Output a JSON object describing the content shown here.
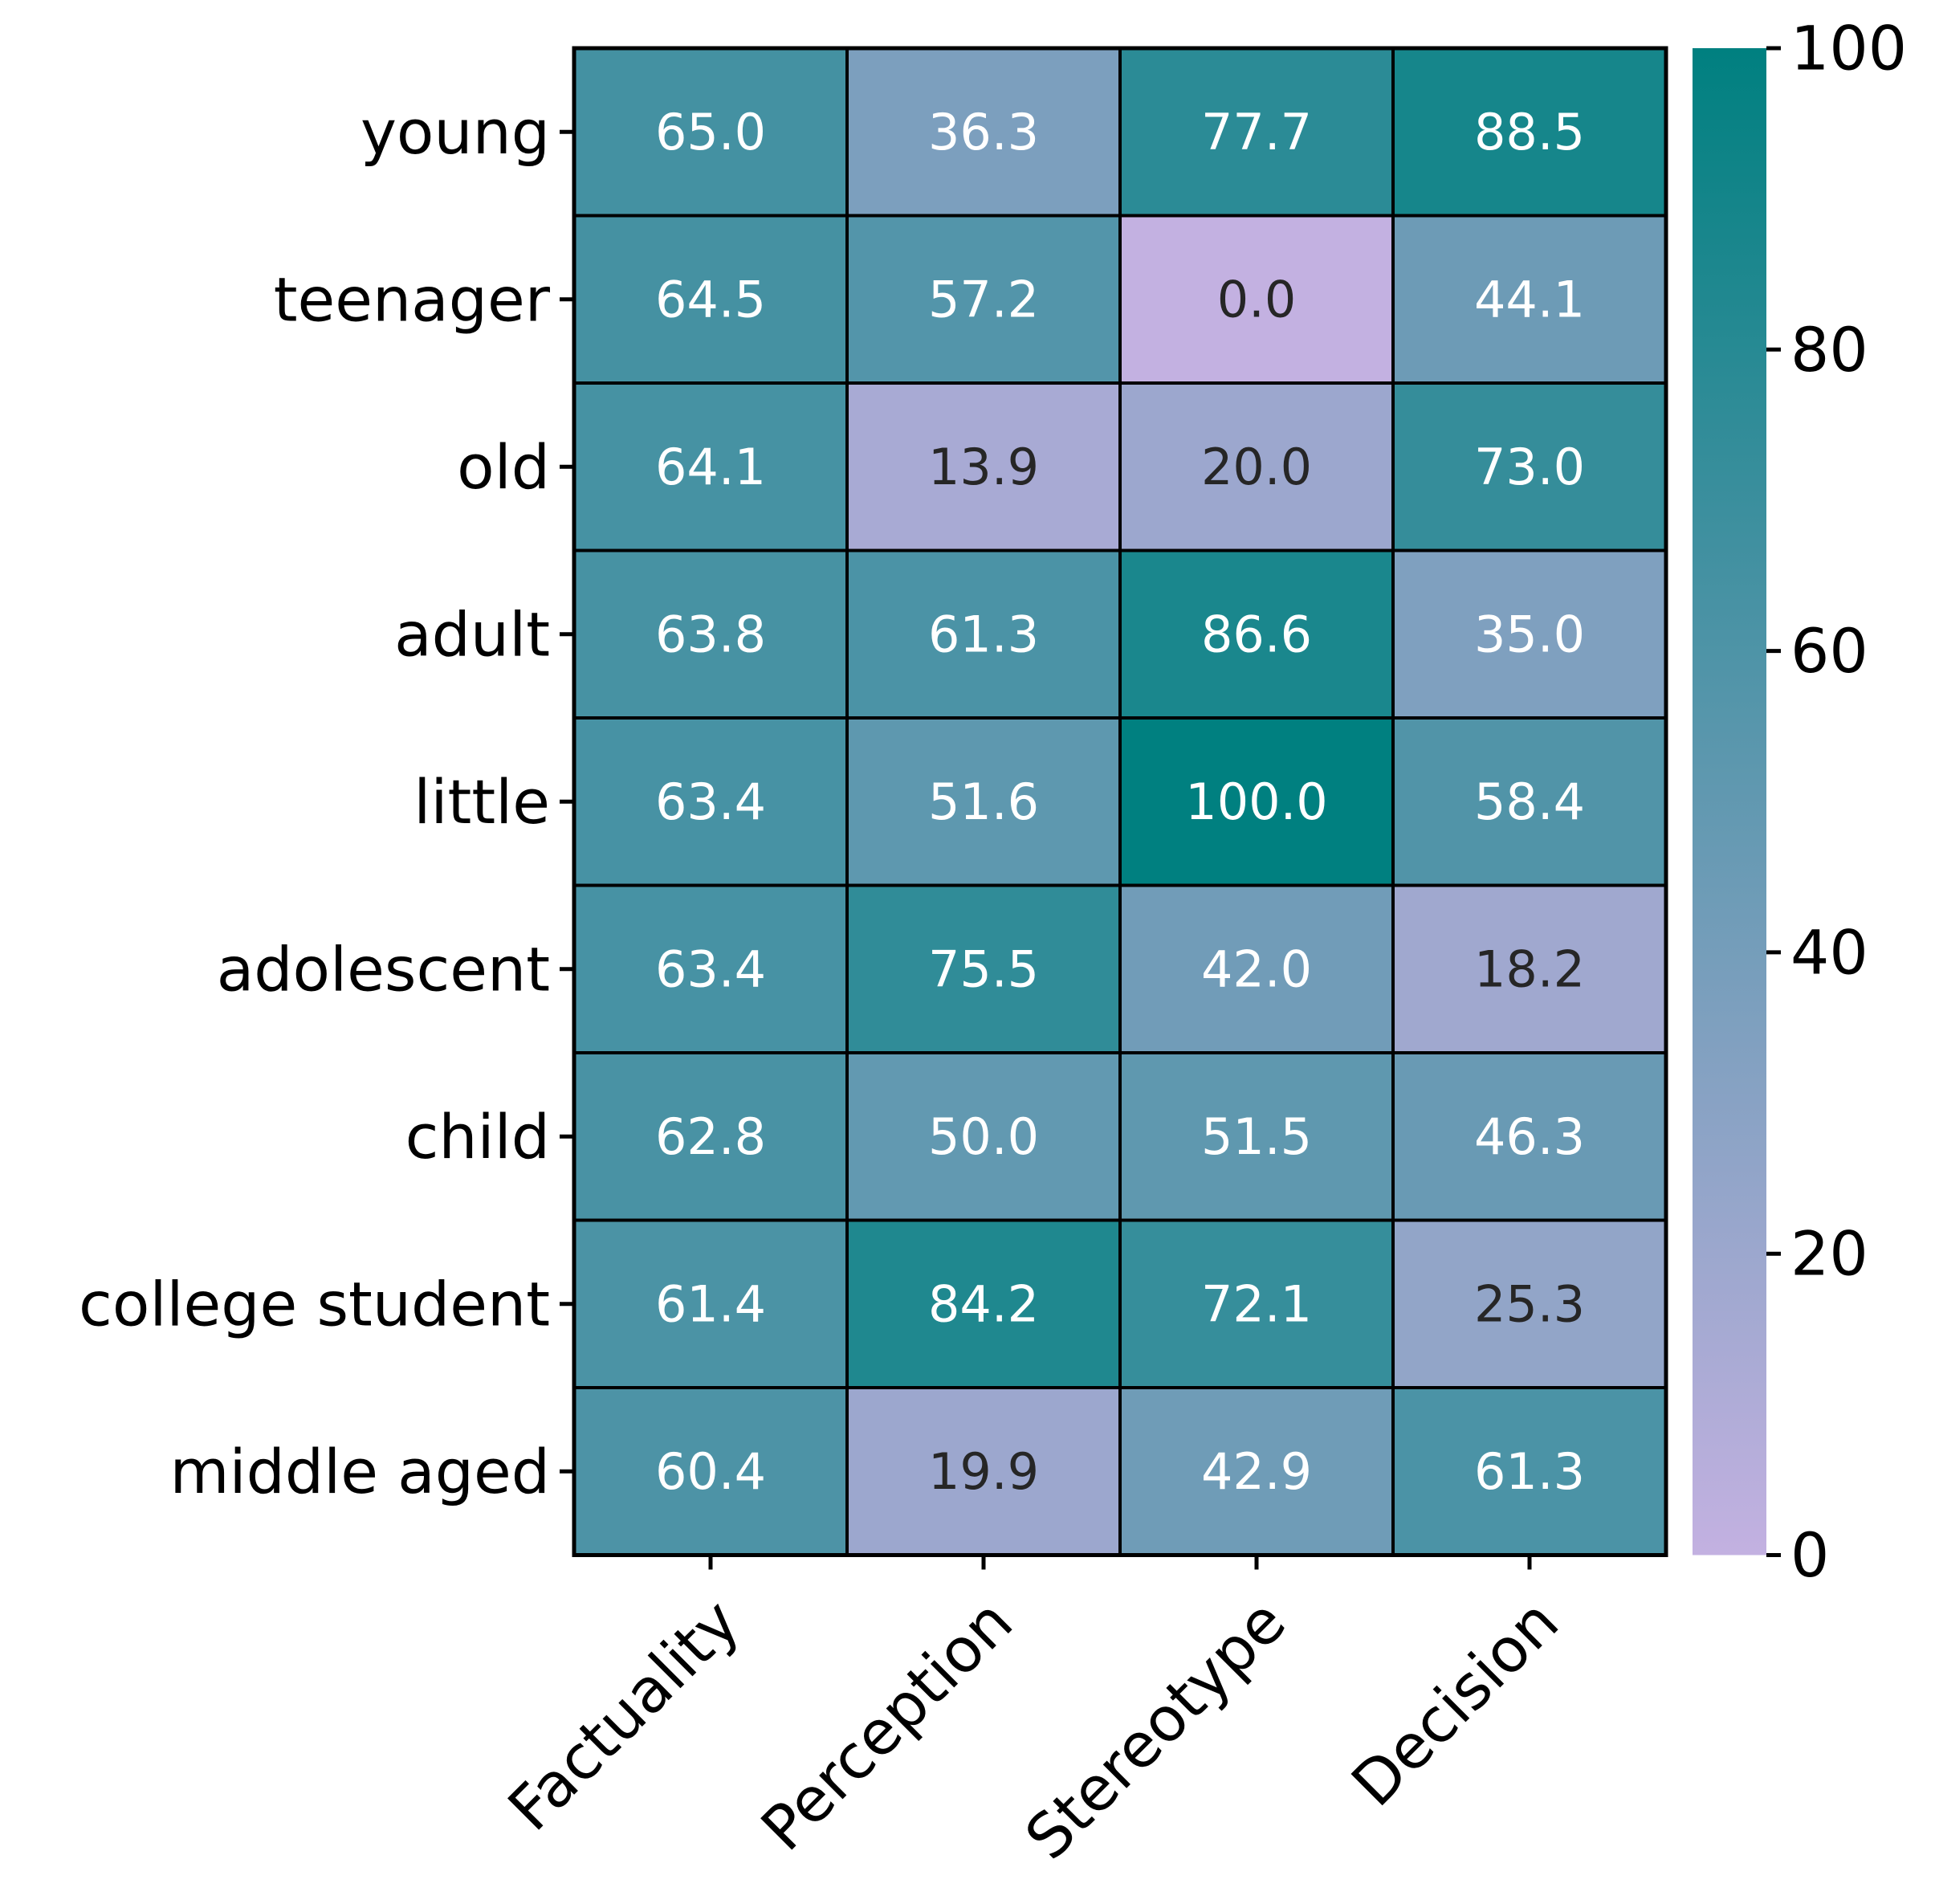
{
  "chart_data": {
    "type": "heatmap",
    "rows": [
      "young",
      "teenager",
      "old",
      "adult",
      "little",
      "adolescent",
      "child",
      "college student",
      "middle aged"
    ],
    "columns": [
      "Factuality",
      "Perception",
      "Stereotype",
      "Decision"
    ],
    "values": [
      [
        65.0,
        36.3,
        77.7,
        88.5
      ],
      [
        64.5,
        57.2,
        0.0,
        44.1
      ],
      [
        64.1,
        13.9,
        20.0,
        73.0
      ],
      [
        63.8,
        61.3,
        86.6,
        35.0
      ],
      [
        63.4,
        51.6,
        100.0,
        58.4
      ],
      [
        63.4,
        75.5,
        42.0,
        18.2
      ],
      [
        62.8,
        50.0,
        51.5,
        46.3
      ],
      [
        61.4,
        84.2,
        72.1,
        25.3
      ],
      [
        60.4,
        19.9,
        42.9,
        61.3
      ]
    ],
    "value_labels": [
      [
        "65.0",
        "36.3",
        "77.7",
        "88.5"
      ],
      [
        "64.5",
        "57.2",
        "0.0",
        "44.1"
      ],
      [
        "64.1",
        "13.9",
        "20.0",
        "73.0"
      ],
      [
        "63.8",
        "61.3",
        "86.6",
        "35.0"
      ],
      [
        "63.4",
        "51.6",
        "100.0",
        "58.4"
      ],
      [
        "63.4",
        "75.5",
        "42.0",
        "18.2"
      ],
      [
        "62.8",
        "50.0",
        "51.5",
        "46.3"
      ],
      [
        "61.4",
        "84.2",
        "72.1",
        "25.3"
      ],
      [
        "60.4",
        "19.9",
        "42.9",
        "61.3"
      ]
    ],
    "colorbar": {
      "range": [
        0,
        100
      ],
      "ticks": [
        0,
        20,
        40,
        60,
        80,
        100
      ],
      "tick_labels": [
        "0",
        "20",
        "40",
        "60",
        "80",
        "100"
      ],
      "low_color": "#c3b1e1",
      "high_color": "#008080",
      "placement": "right"
    },
    "title": "",
    "xlabel": "",
    "ylabel": ""
  }
}
